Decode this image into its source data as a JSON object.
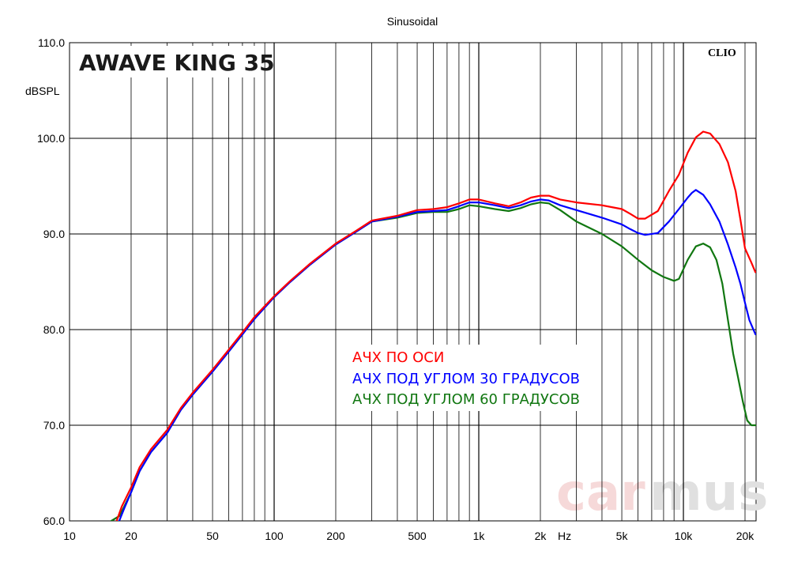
{
  "header": {
    "title": "Sinusoidal"
  },
  "brand_label": "AWAVE KING 35",
  "software_label": "CLIO",
  "watermark": {
    "left": "car",
    "right": "mus"
  },
  "legend": [
    {
      "label": "АЧХ ПО ОСИ",
      "color": "#ff0000"
    },
    {
      "label": "АЧХ ПОД УГЛОМ 30 ГРАДУСОВ",
      "color": "#0000ff"
    },
    {
      "label": "АЧХ ПОД УГЛОМ 60 ГРАДУСОВ",
      "color": "#117711"
    }
  ],
  "chart_data": {
    "type": "line",
    "title": "Sinusoidal",
    "ylabel": "dBSPL",
    "xlabel": "Hz",
    "x_scale": "log",
    "xlim": [
      10,
      20000
    ],
    "ylim": [
      60,
      110
    ],
    "grid": true,
    "x_tick_labels": [
      {
        "value": 10,
        "label": "10"
      },
      {
        "value": 20,
        "label": "20"
      },
      {
        "value": 50,
        "label": "50"
      },
      {
        "value": 100,
        "label": "100"
      },
      {
        "value": 200,
        "label": "200"
      },
      {
        "value": 500,
        "label": "500"
      },
      {
        "value": 1000,
        "label": "1k"
      },
      {
        "value": 2000,
        "label": "2k"
      },
      {
        "value": 5000,
        "label": "5k"
      },
      {
        "value": 10000,
        "label": "10k"
      },
      {
        "value": 20000,
        "label": "20k"
      }
    ],
    "y_tick_labels": [
      {
        "value": 60,
        "label": "60.0"
      },
      {
        "value": 70,
        "label": "70.0"
      },
      {
        "value": 80,
        "label": "80.0"
      },
      {
        "value": 90,
        "label": "90.0"
      },
      {
        "value": 100,
        "label": "100.0"
      },
      {
        "value": 110,
        "label": "110.0"
      }
    ],
    "series": [
      {
        "name": "АЧХ ПО ОСИ",
        "color": "#ff0000",
        "points": [
          [
            17,
            60
          ],
          [
            18,
            61.5
          ],
          [
            20,
            63.5
          ],
          [
            22,
            65.6
          ],
          [
            25,
            67.5
          ],
          [
            30,
            69.5
          ],
          [
            35,
            71.8
          ],
          [
            40,
            73.4
          ],
          [
            50,
            75.8
          ],
          [
            60,
            77.9
          ],
          [
            70,
            79.7
          ],
          [
            80,
            81.3
          ],
          [
            100,
            83.5
          ],
          [
            120,
            85.1
          ],
          [
            150,
            86.9
          ],
          [
            200,
            89
          ],
          [
            250,
            90.3
          ],
          [
            300,
            91.4
          ],
          [
            400,
            91.9
          ],
          [
            500,
            92.5
          ],
          [
            600,
            92.6
          ],
          [
            700,
            92.8
          ],
          [
            800,
            93.2
          ],
          [
            900,
            93.6
          ],
          [
            1000,
            93.6
          ],
          [
            1200,
            93.2
          ],
          [
            1400,
            92.9
          ],
          [
            1600,
            93.3
          ],
          [
            1800,
            93.8
          ],
          [
            2000,
            94
          ],
          [
            2200,
            94
          ],
          [
            2500,
            93.6
          ],
          [
            3000,
            93.3
          ],
          [
            4000,
            93
          ],
          [
            5000,
            92.6
          ],
          [
            5500,
            92.1
          ],
          [
            6000,
            91.6
          ],
          [
            6500,
            91.6
          ],
          [
            7500,
            92.4
          ],
          [
            8500,
            94.5
          ],
          [
            9500,
            96.2
          ],
          [
            10500,
            98.5
          ],
          [
            11500,
            100.1
          ],
          [
            12500,
            100.7
          ],
          [
            13500,
            100.5
          ],
          [
            15000,
            99.4
          ],
          [
            16500,
            97.5
          ],
          [
            18000,
            94.5
          ],
          [
            19000,
            91.5
          ],
          [
            20000,
            88.5
          ],
          [
            21500,
            87
          ],
          [
            22500,
            86
          ]
        ]
      },
      {
        "name": "АЧХ ПОД УГЛОМ 30 ГРАДУСОВ",
        "color": "#0000ff",
        "points": [
          [
            17.5,
            60
          ],
          [
            18.5,
            61.3
          ],
          [
            20,
            63
          ],
          [
            22,
            65.2
          ],
          [
            25,
            67.2
          ],
          [
            30,
            69.2
          ],
          [
            35,
            71.6
          ],
          [
            40,
            73.2
          ],
          [
            50,
            75.6
          ],
          [
            60,
            77.7
          ],
          [
            70,
            79.5
          ],
          [
            80,
            81.1
          ],
          [
            100,
            83.4
          ],
          [
            120,
            85
          ],
          [
            150,
            86.8
          ],
          [
            200,
            88.9
          ],
          [
            250,
            90.2
          ],
          [
            300,
            91.3
          ],
          [
            400,
            91.8
          ],
          [
            500,
            92.3
          ],
          [
            600,
            92.4
          ],
          [
            700,
            92.5
          ],
          [
            800,
            92.9
          ],
          [
            900,
            93.3
          ],
          [
            1000,
            93.3
          ],
          [
            1200,
            93
          ],
          [
            1400,
            92.7
          ],
          [
            1600,
            93
          ],
          [
            1800,
            93.4
          ],
          [
            2000,
            93.6
          ],
          [
            2200,
            93.5
          ],
          [
            2500,
            93
          ],
          [
            3000,
            92.5
          ],
          [
            4000,
            91.7
          ],
          [
            5000,
            91
          ],
          [
            5500,
            90.5
          ],
          [
            6000,
            90.1
          ],
          [
            6500,
            89.9
          ],
          [
            7500,
            90.1
          ],
          [
            8500,
            91.3
          ],
          [
            9500,
            92.6
          ],
          [
            10500,
            93.8
          ],
          [
            11000,
            94.3
          ],
          [
            11500,
            94.6
          ],
          [
            12500,
            94.1
          ],
          [
            13500,
            93.1
          ],
          [
            15000,
            91.3
          ],
          [
            16500,
            88.9
          ],
          [
            18000,
            86.5
          ],
          [
            19000,
            84.8
          ],
          [
            20000,
            82.8
          ],
          [
            21000,
            81
          ],
          [
            22500,
            79.5
          ]
        ]
      },
      {
        "name": "АЧХ ПОД УГЛОМ 60 ГРАДУСОВ",
        "color": "#117711",
        "points": [
          [
            16,
            60
          ],
          [
            17.5,
            60.5
          ],
          [
            18.5,
            61.5
          ],
          [
            20,
            63
          ],
          [
            22,
            65.2
          ],
          [
            25,
            67.2
          ],
          [
            30,
            69.2
          ],
          [
            35,
            71.6
          ],
          [
            40,
            73.2
          ],
          [
            50,
            75.6
          ],
          [
            60,
            77.7
          ],
          [
            70,
            79.5
          ],
          [
            80,
            81.1
          ],
          [
            100,
            83.4
          ],
          [
            120,
            85
          ],
          [
            150,
            86.8
          ],
          [
            200,
            88.9
          ],
          [
            250,
            90.2
          ],
          [
            300,
            91.3
          ],
          [
            400,
            91.7
          ],
          [
            500,
            92.2
          ],
          [
            600,
            92.3
          ],
          [
            700,
            92.3
          ],
          [
            800,
            92.6
          ],
          [
            900,
            93
          ],
          [
            1000,
            92.9
          ],
          [
            1200,
            92.6
          ],
          [
            1400,
            92.4
          ],
          [
            1600,
            92.7
          ],
          [
            1800,
            93.1
          ],
          [
            2000,
            93.3
          ],
          [
            2200,
            93.2
          ],
          [
            2500,
            92.5
          ],
          [
            3000,
            91.3
          ],
          [
            4000,
            90
          ],
          [
            5000,
            88.7
          ],
          [
            6000,
            87.3
          ],
          [
            7000,
            86.2
          ],
          [
            8000,
            85.5
          ],
          [
            9000,
            85.1
          ],
          [
            9500,
            85.3
          ],
          [
            10500,
            87.3
          ],
          [
            11500,
            88.7
          ],
          [
            12500,
            89
          ],
          [
            13500,
            88.6
          ],
          [
            14500,
            87.3
          ],
          [
            15500,
            84.8
          ],
          [
            16500,
            81
          ],
          [
            17500,
            77.5
          ],
          [
            18500,
            75
          ],
          [
            19500,
            72.5
          ],
          [
            20500,
            70.5
          ],
          [
            21500,
            70
          ],
          [
            22500,
            70
          ]
        ]
      }
    ]
  }
}
